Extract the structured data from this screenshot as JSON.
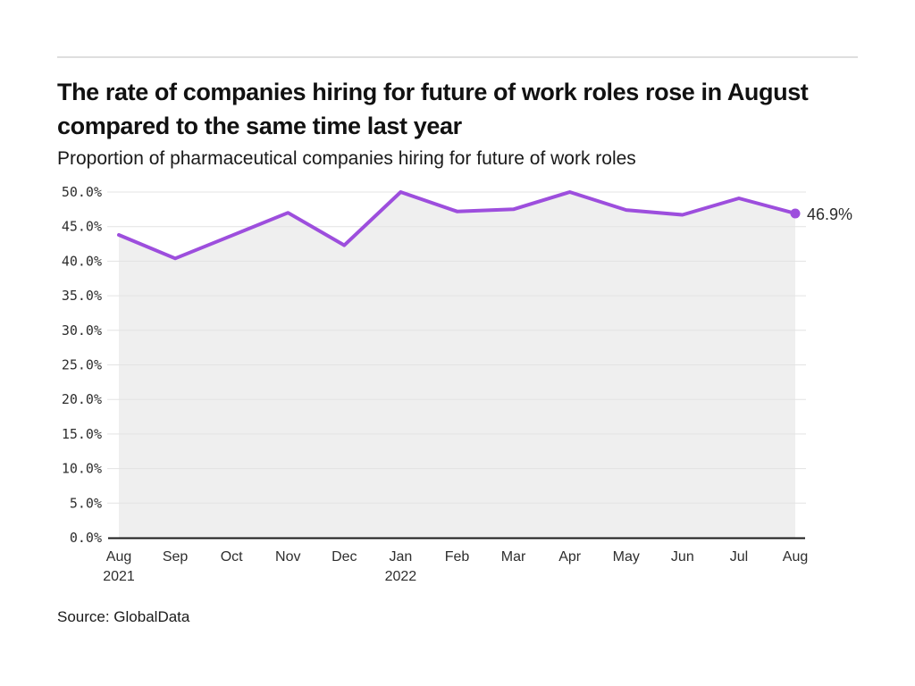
{
  "header": {
    "title": "The rate of companies hiring for future of work roles rose in August compared to the same time last year",
    "subtitle": "Proportion of pharmaceutical companies hiring for future of work roles"
  },
  "chart_data": {
    "type": "line",
    "title": "The rate of companies hiring for future of work roles rose in August compared to the same time last year",
    "subtitle": "Proportion of pharmaceutical companies hiring for future of work roles",
    "categories": [
      "Aug",
      "Sep",
      "Oct",
      "Nov",
      "Dec",
      "Jan",
      "Feb",
      "Mar",
      "Apr",
      "May",
      "Jun",
      "Jul",
      "Aug"
    ],
    "year_labels": {
      "0": "2021",
      "5": "2022"
    },
    "series": [
      {
        "name": "Proportion of pharmaceutical companies hiring for future of work roles",
        "values": [
          43.8,
          40.4,
          43.7,
          47.0,
          42.3,
          50.0,
          47.2,
          47.5,
          50.0,
          47.4,
          46.7,
          49.1,
          46.9
        ]
      }
    ],
    "ylim": [
      0,
      50
    ],
    "ytick_step": 5,
    "ytick_suffix": "%",
    "grid": true,
    "legend_position": "none",
    "end_label": "46.9%",
    "colors": {
      "line": "#9d4edd",
      "area": "#efefef",
      "grid": "#e3e3e3",
      "axis": "#1a1a1a",
      "tick_text": "#2e2e2e",
      "end_label_text": "#2b2b2b"
    }
  },
  "footer": {
    "source": "Source: GlobalData"
  }
}
